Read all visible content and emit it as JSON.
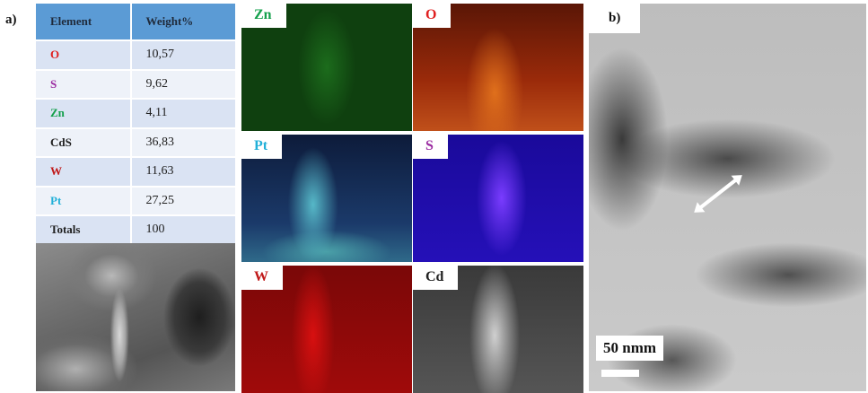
{
  "panel_a_label": "a)",
  "panel_b_label": "b)",
  "table": {
    "headers": [
      "Element",
      "Weight%"
    ],
    "rows": [
      {
        "element": "O",
        "value": "10,57"
      },
      {
        "element": "S",
        "value": "9,62"
      },
      {
        "element": "Zn",
        "value": "4,11"
      },
      {
        "element": "CdS",
        "value": "36,83"
      },
      {
        "element": "W",
        "value": "11,63"
      },
      {
        "element": "Pt",
        "value": "27,25"
      },
      {
        "element": "Totals",
        "value": "100"
      }
    ]
  },
  "maps": [
    {
      "label": "Zn",
      "color": "#14a04c"
    },
    {
      "label": "O",
      "color": "#e02020"
    },
    {
      "label": "Pt",
      "color": "#22b0d8"
    },
    {
      "label": "S",
      "color": "#9a2aa0"
    },
    {
      "label": "W",
      "color": "#c01818"
    },
    {
      "label": "Cd",
      "color": "#222222"
    }
  ],
  "tem": {
    "scale_label": "50 nmm"
  },
  "colors": {
    "table_header": "#5b9bd5",
    "row_odd": "#dae3f3",
    "row_even": "#eef2f9"
  }
}
